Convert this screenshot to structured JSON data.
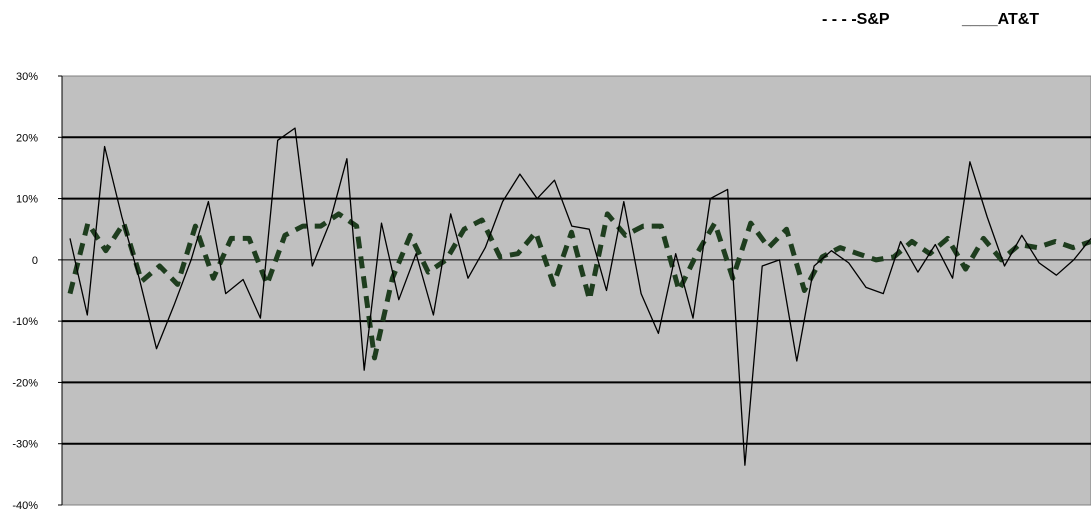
{
  "chart_data": {
    "type": "line",
    "title": "",
    "xlabel": "",
    "ylabel": "",
    "ylim": [
      -40,
      30
    ],
    "yticks": [
      {
        "value": 30,
        "label": "30%"
      },
      {
        "value": 20,
        "label": "20%"
      },
      {
        "value": 10,
        "label": "10%"
      },
      {
        "value": 0,
        "label": "0"
      },
      {
        "value": -10,
        "label": "-10%"
      },
      {
        "value": -20,
        "label": "-20%"
      },
      {
        "value": -30,
        "label": "-30%"
      },
      {
        "value": -40,
        "label": "-40%"
      }
    ],
    "grid": true,
    "legend_position": "top-right",
    "plot_background": "#c0c0c0",
    "series": [
      {
        "name": "- - - -S&P",
        "style": "dashed",
        "color": "#1e3d1e",
        "values": [
          -5.5,
          6,
          1.5,
          6,
          -3.5,
          -1,
          -4,
          5.5,
          -3,
          3.5,
          3.5,
          -4,
          4,
          5.5,
          5.5,
          7.5,
          5.5,
          -16,
          -3,
          4,
          -2,
          0,
          5,
          6.5,
          0.5,
          1,
          4.5,
          -4,
          4.5,
          -6.5,
          7.5,
          4,
          5.5,
          5.5,
          -5,
          1,
          6,
          -3,
          6,
          2,
          5,
          -5,
          0.5,
          2,
          1,
          0,
          0.5,
          3,
          1,
          3.5,
          -1.5,
          3.5,
          0,
          2.5,
          2,
          3,
          2,
          3
        ]
      },
      {
        "name": "____AT&T",
        "style": "solid",
        "color": "#000000",
        "values": [
          3.5,
          -9,
          18.5,
          7,
          -3,
          -14.5,
          -7.5,
          0,
          9.5,
          -5.5,
          -3.2,
          -9.5,
          19.5,
          21.5,
          -1,
          6,
          16.5,
          -18,
          6,
          -6.5,
          1,
          -9,
          7.5,
          -3,
          2,
          9.5,
          14,
          10,
          13,
          5.5,
          5,
          -5,
          9.5,
          -5.5,
          -12,
          1,
          -9.5,
          10,
          11.5,
          -33.5,
          -1,
          0,
          -16.5,
          -1,
          1.5,
          -0.5,
          -4.5,
          -5.5,
          3,
          -2,
          2.5,
          -3,
          16,
          7,
          -1,
          4,
          -0.5,
          -2.5,
          0,
          3.5
        ]
      }
    ]
  }
}
